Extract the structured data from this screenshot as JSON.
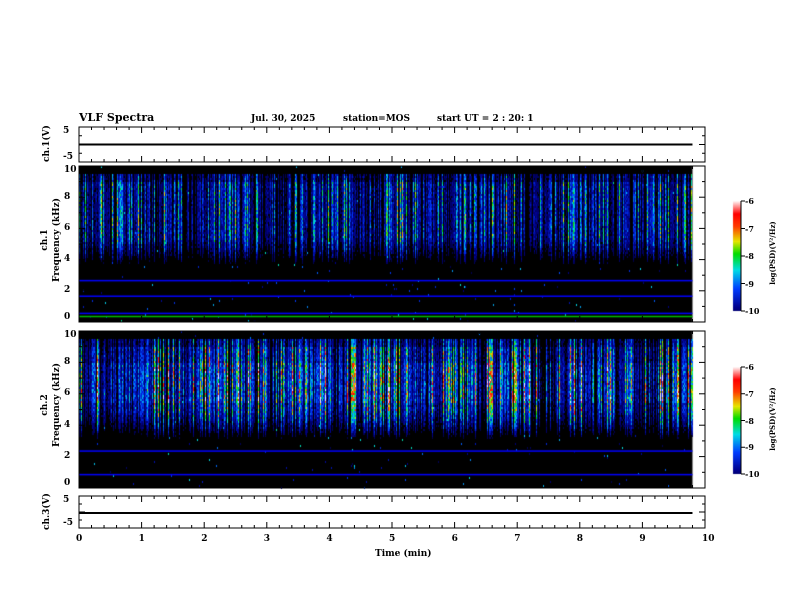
{
  "header": {
    "title": "VLF Spectra",
    "date": "Jul. 30, 2025",
    "station": "station=MOS",
    "start": "start UT =  2 : 20: 1"
  },
  "chart_data": [
    {
      "type": "line",
      "name": "ch1",
      "ylabel": "ch.1(V)",
      "ylim": [
        -5,
        5
      ],
      "yticks": [
        "5",
        "-5"
      ],
      "value": 0
    },
    {
      "type": "heatmap",
      "name": "ch1-spectrogram",
      "ylabel": [
        "ch.1",
        "Frequency (kHz)"
      ],
      "ylim": [
        0,
        10
      ],
      "yticks": [
        "0",
        "2",
        "4",
        "6",
        "8",
        "10"
      ],
      "colorbar": {
        "label": "log(PSD)(V²/Hz)",
        "range": [
          -10,
          -6
        ],
        "ticks": [
          "-6",
          "-7",
          "-8",
          "-9",
          "-10"
        ]
      },
      "emission_band_khz": [
        4.5,
        9.5
      ],
      "line_tones_khz": [
        2.7,
        1.7,
        0.6,
        0.4
      ]
    },
    {
      "type": "heatmap",
      "name": "ch2-spectrogram",
      "ylabel": [
        "ch.2",
        "Frequency (kHz)"
      ],
      "ylim": [
        0,
        10
      ],
      "yticks": [
        "0",
        "2",
        "4",
        "6",
        "8",
        "10"
      ],
      "colorbar": {
        "label": "log(PSD)(V²/Hz)",
        "range": [
          -10,
          -6
        ],
        "ticks": [
          "-6",
          "-7",
          "-8",
          "-9",
          "-10"
        ]
      },
      "emission_band_khz": [
        4,
        9.5
      ],
      "line_tones_khz": [
        2.4,
        0.9
      ]
    },
    {
      "type": "line",
      "name": "ch3",
      "ylabel": "ch.3(V)",
      "ylim": [
        -5,
        5
      ],
      "yticks": [
        "5",
        "-5"
      ],
      "value": 0
    }
  ],
  "xaxis": {
    "label": "Time (min)",
    "range": [
      0,
      10
    ],
    "ticks": [
      "0",
      "1",
      "2",
      "3",
      "4",
      "5",
      "6",
      "7",
      "8",
      "9",
      "10"
    ],
    "data_end": 9.8
  }
}
